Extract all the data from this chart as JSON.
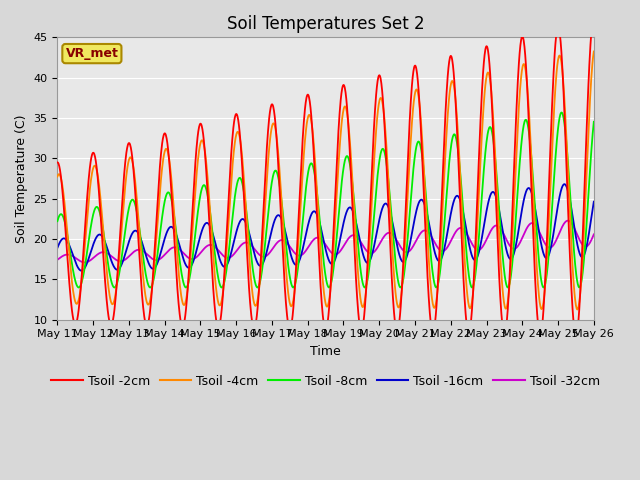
{
  "title": "Soil Temperatures Set 2",
  "xlabel": "Time",
  "ylabel": "Soil Temperature (C)",
  "ylim": [
    10,
    45
  ],
  "annotation": "VR_met",
  "colors": {
    "Tsoil -2cm": "#ff0000",
    "Tsoil -4cm": "#ff8800",
    "Tsoil -8cm": "#00ee00",
    "Tsoil -16cm": "#0000cc",
    "Tsoil -32cm": "#cc00cc"
  },
  "legend_labels": [
    "Tsoil -2cm",
    "Tsoil -4cm",
    "Tsoil -8cm",
    "Tsoil -16cm",
    "Tsoil -32cm"
  ],
  "x_tick_labels": [
    "May 11",
    "May 12",
    "May 13",
    "May 14",
    "May 15",
    "May 16",
    "May 17",
    "May 18",
    "May 19",
    "May 20",
    "May 21",
    "May 22",
    "May 23",
    "May 24",
    "May 25",
    "May 26"
  ],
  "background_color": "#d8d8d8",
  "plot_bg_color": "#e8e8e8",
  "grid_color": "#ffffff",
  "title_fontsize": 12,
  "axis_fontsize": 8,
  "legend_fontsize": 9,
  "yticks": [
    10,
    15,
    20,
    25,
    30,
    35,
    40,
    45
  ]
}
